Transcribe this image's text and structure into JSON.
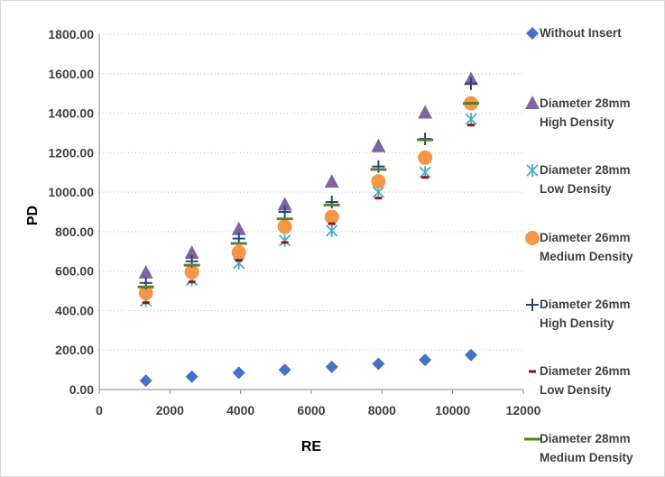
{
  "chart_data": {
    "type": "scatter",
    "xlabel": "RE",
    "ylabel": "PD",
    "xlim": [
      0,
      12000
    ],
    "ylim": [
      0,
      1800
    ],
    "x_ticks": [
      "0",
      "2000",
      "4000",
      "6000",
      "8000",
      "10000",
      "12000"
    ],
    "y_ticks": [
      "0.00",
      "200.00",
      "400.00",
      "600.00",
      "800.00",
      "1000.00",
      "1200.00",
      "1400.00",
      "1600.00",
      "1800.00"
    ],
    "grid": "horizontal-dotted",
    "legend_position": "right",
    "series": [
      {
        "name": [
          "Without Insert"
        ],
        "marker": "diamond",
        "color": "#4472c4",
        "points": [
          [
            1320,
            45
          ],
          [
            2620,
            65
          ],
          [
            3950,
            85
          ],
          [
            5250,
            100
          ],
          [
            6580,
            115
          ],
          [
            7900,
            130
          ],
          [
            9220,
            150
          ],
          [
            10520,
            175
          ]
        ]
      },
      {
        "name": [
          "Diameter 28mm",
          "High Density"
        ],
        "marker": "triangle",
        "color": "#8064a2",
        "points": [
          [
            1320,
            590
          ],
          [
            2620,
            690
          ],
          [
            3950,
            810
          ],
          [
            5250,
            935
          ],
          [
            6580,
            1050
          ],
          [
            7900,
            1230
          ],
          [
            9220,
            1400
          ],
          [
            10520,
            1570
          ]
        ]
      },
      {
        "name": [
          "Diameter 28mm",
          "Low Density"
        ],
        "marker": "asterisk",
        "color": "#4bacc6",
        "points": [
          [
            1320,
            450
          ],
          [
            2620,
            555
          ],
          [
            3950,
            640
          ],
          [
            5250,
            755
          ],
          [
            6580,
            805
          ],
          [
            7900,
            1000
          ],
          [
            9220,
            1100
          ],
          [
            10520,
            1370
          ]
        ]
      },
      {
        "name": [
          "Diameter 26mm",
          "Medium Density"
        ],
        "marker": "circle",
        "color": "#f79646",
        "points": [
          [
            1320,
            490
          ],
          [
            2620,
            595
          ],
          [
            3950,
            695
          ],
          [
            5250,
            825
          ],
          [
            6580,
            875
          ],
          [
            7900,
            1055
          ],
          [
            9220,
            1175
          ],
          [
            10520,
            1450
          ]
        ]
      },
      {
        "name": [
          "Diameter 26mm",
          "High Density"
        ],
        "marker": "plus",
        "color": "#1f497d",
        "points": [
          [
            1320,
            540
          ],
          [
            2620,
            650
          ],
          [
            3950,
            765
          ],
          [
            5250,
            900
          ],
          [
            6580,
            950
          ],
          [
            7900,
            1130
          ],
          [
            9220,
            1270
          ],
          [
            10520,
            1550
          ]
        ]
      },
      {
        "name": [
          "Diameter 26mm",
          "Low Density"
        ],
        "marker": "short-dash",
        "color": "#8b1a1a",
        "points": [
          [
            1320,
            440
          ],
          [
            2620,
            545
          ],
          [
            3950,
            655
          ],
          [
            5250,
            745
          ],
          [
            6580,
            840
          ],
          [
            7900,
            970
          ],
          [
            9220,
            1075
          ],
          [
            10520,
            1340
          ]
        ]
      },
      {
        "name": [
          "Diameter 28mm",
          "Medium Density"
        ],
        "marker": "dash",
        "color": "#5e7d2e",
        "points": [
          [
            1320,
            520
          ],
          [
            2620,
            630
          ],
          [
            3950,
            740
          ],
          [
            5250,
            865
          ],
          [
            6580,
            935
          ],
          [
            7900,
            1115
          ],
          [
            9220,
            1265
          ],
          [
            10520,
            1450
          ]
        ]
      }
    ]
  }
}
